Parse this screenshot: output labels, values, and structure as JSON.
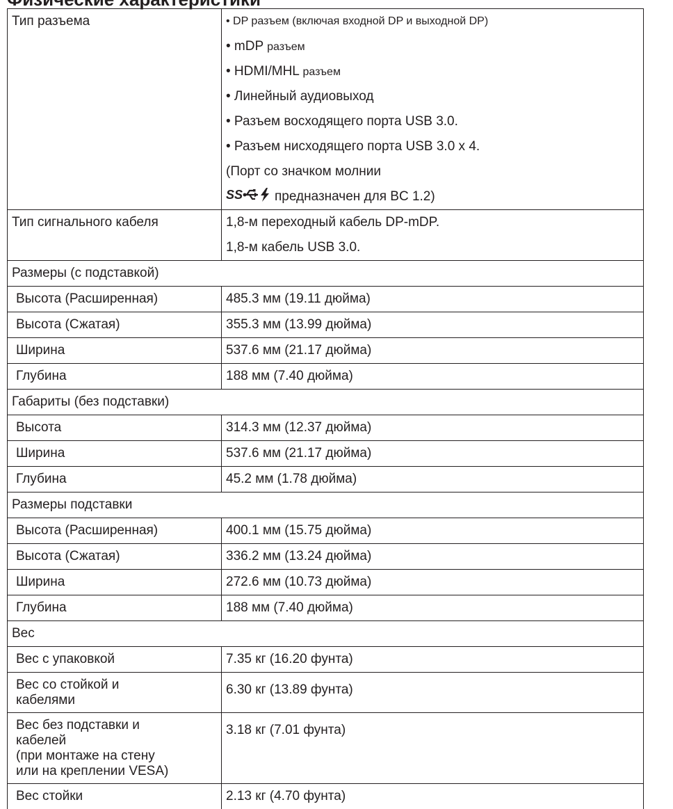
{
  "title": "Физические характеристики",
  "connectors": {
    "label": "Тип разъема",
    "items": [
      "• DP разъем (включая входной DP и выходной DP)",
      "• mDP ",
      "разъем",
      "• HDMI/MHL ",
      "разъем",
      "• Линейный аудиовыход",
      "• Разъем восходящего порта USB 3.0.",
      "• Разъем нисходящего порта USB 3.0 x 4.",
      "(Порт со значком молнии",
      "предназначен для BC 1.2)"
    ],
    "logo_text": "SS"
  },
  "cable": {
    "label": "Тип сигнального кабеля",
    "items": [
      "1,8-м переходный кабель DP-mDP.",
      "1,8-м кабель USB 3.0."
    ]
  },
  "sections": [
    {
      "title": "Размеры (с подставкой)",
      "rows": [
        {
          "label": "Высота (Расширенная)",
          "value": "485.3 мм (19.11 дюйма)"
        },
        {
          "label": "Высота (Сжатая)",
          "value": "355.3 мм (13.99 дюйма)"
        },
        {
          "label": "Ширина",
          "value": "537.6 мм (21.17 дюйма)"
        },
        {
          "label": "Глубина",
          "value": "188 мм (7.40 дюйма)"
        }
      ]
    },
    {
      "title": "Габариты (без подставки)",
      "rows": [
        {
          "label": "Высота",
          "value": "314.3 мм (12.37 дюйма)"
        },
        {
          "label": "Ширина",
          "value": "537.6 мм (21.17 дюйма)"
        },
        {
          "label": "Глубина",
          "value": "45.2 мм (1.78 дюйма)"
        }
      ]
    },
    {
      "title": "Размеры подставки",
      "rows": [
        {
          "label": "Высота (Расширенная)",
          "value": "400.1 мм (15.75 дюйма)"
        },
        {
          "label": "Высота (Сжатая)",
          "value": "336.2 мм (13.24 дюйма)"
        },
        {
          "label": "Ширина",
          "value": "272.6 мм (10.73 дюйма)"
        },
        {
          "label": "Глубина",
          "value": "188 мм (7.40 дюйма)"
        }
      ]
    },
    {
      "title": "Вес",
      "rows": [
        {
          "label": "Вес с упаковкой",
          "value": "7.35 кг (16.20 фунта)"
        },
        {
          "label_lines": [
            "Вес со стойкой и",
            "кабелями"
          ],
          "value": "6.30 кг (13.89 фунта)"
        },
        {
          "label_lines": [
            "Вес без подставки и",
            "кабелей",
            " (при монтаже на стену",
            "или на креплении VESA)"
          ],
          "value": "3.18 кг (7.01 фунта)"
        },
        {
          "label": "Вес стойки",
          "value": "2.13 кг (4.70 фунта)"
        }
      ]
    }
  ]
}
